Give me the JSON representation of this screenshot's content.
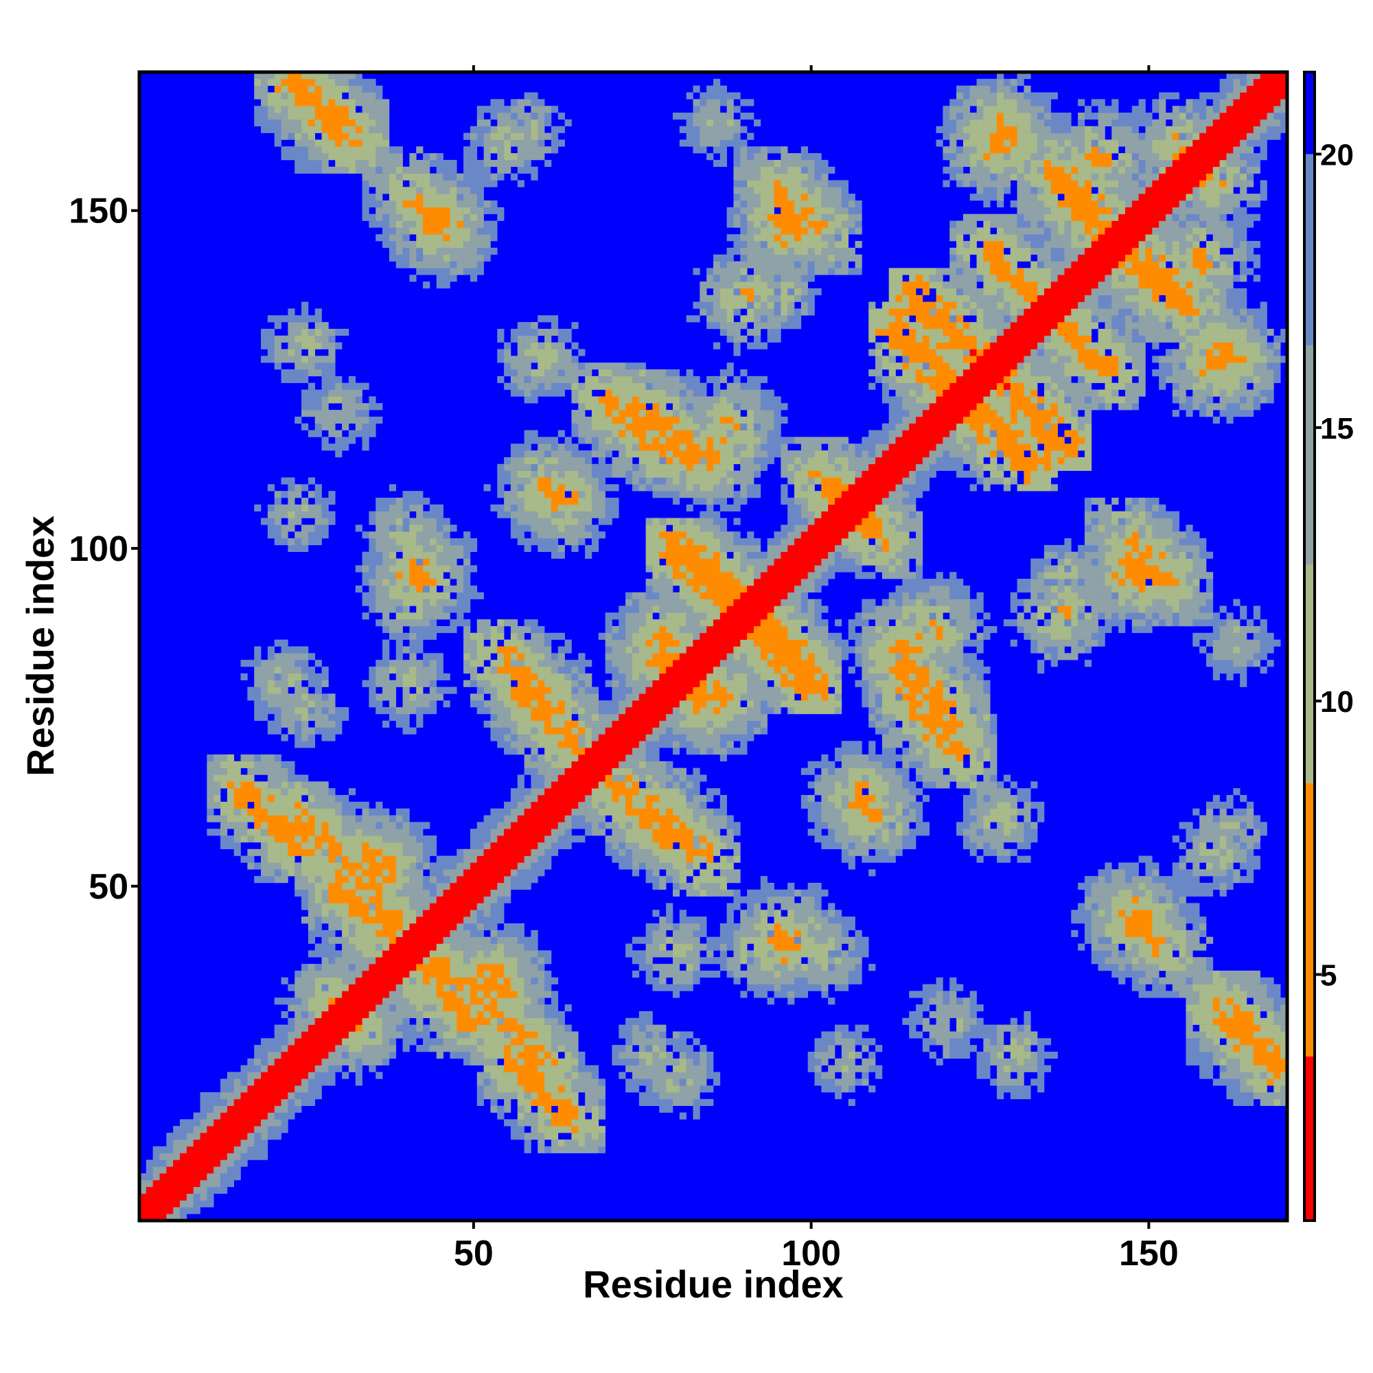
{
  "chart_data": {
    "type": "heatmap",
    "title": "",
    "xlabel": "Residue index",
    "ylabel": "Residue index",
    "xlim": [
      1,
      170
    ],
    "ylim": [
      1,
      170
    ],
    "x_ticks": [
      50,
      100,
      150
    ],
    "y_ticks": [
      50,
      100,
      150
    ],
    "x_tick_labels": [
      "50",
      "100",
      "150"
    ],
    "y_tick_labels": [
      "50",
      "100",
      "150"
    ],
    "grid": false,
    "legend": "colorbar-right",
    "colorbar": {
      "range": [
        0.5,
        21.5
      ],
      "ticks": [
        5,
        10,
        15,
        20
      ],
      "tick_labels": [
        "5",
        "10",
        "15",
        "20"
      ],
      "segments": [
        {
          "from": 0.5,
          "to": 3.5,
          "color": "#ff0000"
        },
        {
          "from": 3.5,
          "to": 8.5,
          "color": "#ff8c00"
        },
        {
          "from": 8.5,
          "to": 12.5,
          "color": "#a8b98a"
        },
        {
          "from": 12.5,
          "to": 16.5,
          "color": "#8ea2a8"
        },
        {
          "from": 16.5,
          "to": 20.0,
          "color": "#6b88c6"
        },
        {
          "from": 20.0,
          "to": 21.5,
          "color": "#0000ff"
        }
      ]
    },
    "matrix_description": {
      "n_residues": 170,
      "symmetric": true,
      "value_meaning": "distance between residues, capped at 21",
      "background_value": 21,
      "diagonal_value": 1,
      "near_diagonal_band_width": 3,
      "contact_clusters": [
        {
          "x": 27,
          "y": 165,
          "len": 6,
          "dir": "anti",
          "value": 5
        },
        {
          "x": 43,
          "y": 150,
          "len": 3,
          "dir": "anti",
          "value": 6
        },
        {
          "x": 58,
          "y": 162,
          "len": 4,
          "dir": "none",
          "value": 12
        },
        {
          "x": 98,
          "y": 150,
          "len": 3,
          "dir": "anti",
          "value": 5
        },
        {
          "x": 90,
          "y": 137,
          "len": 3,
          "dir": "none",
          "value": 8
        },
        {
          "x": 128,
          "y": 160,
          "len": 4,
          "dir": "none",
          "value": 6
        },
        {
          "x": 143,
          "y": 158,
          "len": 3,
          "dir": "none",
          "value": 7
        },
        {
          "x": 159,
          "y": 155,
          "len": 4,
          "dir": "none",
          "value": 7
        },
        {
          "x": 140,
          "y": 150,
          "len": 6,
          "dir": "anti",
          "value": 5
        },
        {
          "x": 152,
          "y": 140,
          "len": 5,
          "dir": "anti",
          "value": 5
        },
        {
          "x": 130,
          "y": 140,
          "len": 5,
          "dir": "anti",
          "value": 5
        },
        {
          "x": 121,
          "y": 132,
          "len": 9,
          "dir": "anti",
          "value": 4
        },
        {
          "x": 127,
          "y": 118,
          "len": 10,
          "dir": "anti",
          "value": 4
        },
        {
          "x": 162,
          "y": 128,
          "len": 4,
          "dir": "none",
          "value": 7
        },
        {
          "x": 74,
          "y": 118,
          "len": 6,
          "dir": "anti",
          "value": 5
        },
        {
          "x": 85,
          "y": 114,
          "len": 3,
          "dir": "none",
          "value": 6
        },
        {
          "x": 61,
          "y": 109,
          "len": 3,
          "dir": "none",
          "value": 7
        },
        {
          "x": 105,
          "y": 107,
          "len": 5,
          "dir": "anti",
          "value": 5
        },
        {
          "x": 88,
          "y": 93,
          "len": 10,
          "dir": "anti",
          "value": 4
        },
        {
          "x": 95,
          "y": 85,
          "len": 9,
          "dir": "anti",
          "value": 4
        },
        {
          "x": 117,
          "y": 79,
          "len": 6,
          "dir": "anti",
          "value": 5
        },
        {
          "x": 148,
          "y": 96,
          "len": 3,
          "dir": "none",
          "value": 6
        },
        {
          "x": 58,
          "y": 80,
          "len": 6,
          "dir": "anti",
          "value": 5
        },
        {
          "x": 78,
          "y": 86,
          "len": 3,
          "dir": "none",
          "value": 6
        },
        {
          "x": 84,
          "y": 78,
          "len": 3,
          "dir": "none",
          "value": 6
        },
        {
          "x": 74,
          "y": 62,
          "len": 6,
          "dir": "anti",
          "value": 5
        },
        {
          "x": 107,
          "y": 63,
          "len": 3,
          "dir": "none",
          "value": 7
        },
        {
          "x": 118,
          "y": 88,
          "len": 3,
          "dir": "none",
          "value": 7
        },
        {
          "x": 20,
          "y": 60,
          "len": 7,
          "dir": "anti",
          "value": 5
        },
        {
          "x": 36,
          "y": 52,
          "len": 4,
          "dir": "none",
          "value": 6
        },
        {
          "x": 34,
          "y": 46,
          "len": 6,
          "dir": "anti",
          "value": 5
        },
        {
          "x": 44,
          "y": 38,
          "len": 6,
          "dir": "anti",
          "value": 5
        },
        {
          "x": 53,
          "y": 35,
          "len": 4,
          "dir": "none",
          "value": 6
        },
        {
          "x": 56,
          "y": 28,
          "len": 7,
          "dir": "anti",
          "value": 5
        },
        {
          "x": 30,
          "y": 33,
          "len": 3,
          "dir": "none",
          "value": 7
        },
        {
          "x": 96,
          "y": 42,
          "len": 3,
          "dir": "none",
          "value": 6
        },
        {
          "x": 148,
          "y": 45,
          "len": 3,
          "dir": "none",
          "value": 6
        },
        {
          "x": 165,
          "y": 28,
          "len": 6,
          "dir": "anti",
          "value": 5
        },
        {
          "x": 40,
          "y": 92,
          "len": 3,
          "dir": "none",
          "value": 10
        },
        {
          "x": 22,
          "y": 80,
          "len": 4,
          "dir": "none",
          "value": 11
        },
        {
          "x": 25,
          "y": 130,
          "len": 4,
          "dir": "none",
          "value": 11
        },
        {
          "x": 40,
          "y": 102,
          "len": 3,
          "dir": "none",
          "value": 10
        },
        {
          "x": 60,
          "y": 128,
          "len": 5,
          "dir": "none",
          "value": 11
        },
        {
          "x": 105,
          "y": 24,
          "len": 4,
          "dir": "none",
          "value": 12
        },
        {
          "x": 120,
          "y": 30,
          "len": 5,
          "dir": "none",
          "value": 12
        },
        {
          "x": 138,
          "y": 95,
          "len": 5,
          "dir": "none",
          "value": 11
        },
        {
          "x": 163,
          "y": 86,
          "len": 4,
          "dir": "none",
          "value": 12
        },
        {
          "x": 160,
          "y": 55,
          "len": 5,
          "dir": "none",
          "value": 11
        },
        {
          "x": 80,
          "y": 40,
          "len": 5,
          "dir": "none",
          "value": 11
        },
        {
          "x": 76,
          "y": 25,
          "len": 5,
          "dir": "none",
          "value": 12
        }
      ]
    }
  }
}
